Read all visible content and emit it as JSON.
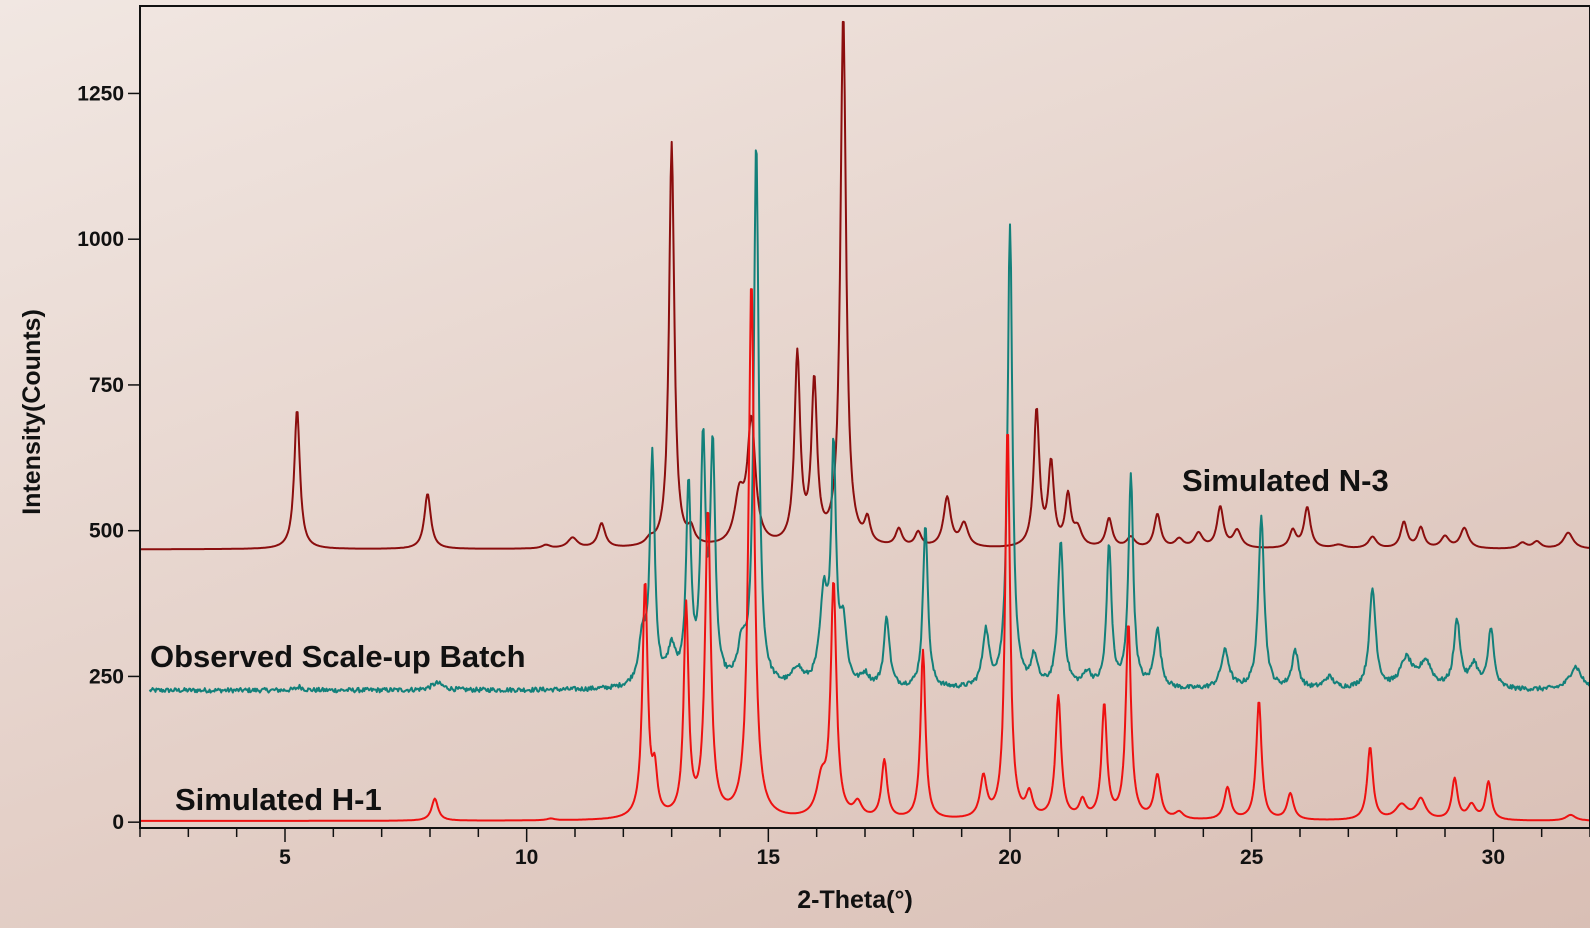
{
  "chart_data": {
    "type": "line",
    "title": "",
    "xlabel": "2-Theta(°)",
    "ylabel": "Intensity(Counts)",
    "xlim": [
      2,
      32
    ],
    "ylim": [
      -10,
      1400
    ],
    "x_ticks": [
      5,
      10,
      15,
      20,
      25,
      30
    ],
    "y_ticks": [
      0,
      250,
      500,
      750,
      1000,
      1250
    ],
    "grid": false,
    "legend": "none",
    "series": [
      {
        "name": "Simulated N-3",
        "color": "#8b0e0e",
        "baseline": 468,
        "noise": 0,
        "peaks": [
          [
            5.25,
            240,
            0.07
          ],
          [
            7.95,
            95,
            0.08
          ],
          [
            10.4,
            6,
            0.1
          ],
          [
            10.95,
            18,
            0.12
          ],
          [
            11.55,
            42,
            0.09
          ],
          [
            12.55,
            10,
            0.1
          ],
          [
            13.0,
            695,
            0.065
          ],
          [
            13.4,
            25,
            0.08
          ],
          [
            14.4,
            80,
            0.12
          ],
          [
            14.65,
            210,
            0.1
          ],
          [
            15.6,
            325,
            0.07
          ],
          [
            15.95,
            275,
            0.07
          ],
          [
            16.55,
            915,
            0.07
          ],
          [
            17.05,
            40,
            0.07
          ],
          [
            17.7,
            30,
            0.08
          ],
          [
            18.1,
            25,
            0.08
          ],
          [
            18.7,
            85,
            0.09
          ],
          [
            19.05,
            40,
            0.1
          ],
          [
            20.55,
            235,
            0.07
          ],
          [
            20.85,
            140,
            0.07
          ],
          [
            21.2,
            85,
            0.07
          ],
          [
            21.4,
            30,
            0.1
          ],
          [
            22.05,
            50,
            0.08
          ],
          [
            22.5,
            18,
            0.1
          ],
          [
            23.05,
            58,
            0.08
          ],
          [
            23.5,
            15,
            0.1
          ],
          [
            23.9,
            25,
            0.1
          ],
          [
            24.35,
            70,
            0.08
          ],
          [
            24.7,
            30,
            0.1
          ],
          [
            25.85,
            30,
            0.08
          ],
          [
            26.15,
            70,
            0.08
          ],
          [
            26.8,
            6,
            0.15
          ],
          [
            27.5,
            20,
            0.1
          ],
          [
            28.15,
            45,
            0.08
          ],
          [
            28.5,
            35,
            0.08
          ],
          [
            29.0,
            20,
            0.1
          ],
          [
            29.4,
            35,
            0.1
          ],
          [
            30.6,
            10,
            0.1
          ],
          [
            30.9,
            12,
            0.1
          ],
          [
            31.55,
            28,
            0.12
          ]
        ]
      },
      {
        "name": "Observed Scale-up Batch",
        "color": "#13807a",
        "baseline": 226,
        "noise": 4,
        "peaks": [
          [
            5.3,
            6,
            0.08
          ],
          [
            8.15,
            12,
            0.15
          ],
          [
            12.4,
            80,
            0.1
          ],
          [
            12.6,
            390,
            0.06
          ],
          [
            13.0,
            60,
            0.1
          ],
          [
            13.35,
            340,
            0.06
          ],
          [
            13.65,
            405,
            0.06
          ],
          [
            13.85,
            400,
            0.06
          ],
          [
            14.45,
            60,
            0.1
          ],
          [
            14.75,
            935,
            0.06
          ],
          [
            15.6,
            30,
            0.12
          ],
          [
            16.15,
            150,
            0.1
          ],
          [
            16.35,
            390,
            0.06
          ],
          [
            16.55,
            100,
            0.08
          ],
          [
            17.0,
            20,
            0.1
          ],
          [
            17.45,
            120,
            0.07
          ],
          [
            18.25,
            285,
            0.06
          ],
          [
            19.5,
            95,
            0.08
          ],
          [
            20.0,
            795,
            0.06
          ],
          [
            20.5,
            50,
            0.08
          ],
          [
            21.05,
            250,
            0.07
          ],
          [
            21.6,
            25,
            0.1
          ],
          [
            22.05,
            245,
            0.06
          ],
          [
            22.5,
            365,
            0.06
          ],
          [
            23.05,
            100,
            0.08
          ],
          [
            24.45,
            65,
            0.1
          ],
          [
            25.2,
            300,
            0.07
          ],
          [
            25.9,
            65,
            0.08
          ],
          [
            26.6,
            20,
            0.12
          ],
          [
            27.5,
            170,
            0.08
          ],
          [
            28.2,
            50,
            0.15
          ],
          [
            28.6,
            45,
            0.15
          ],
          [
            29.25,
            115,
            0.08
          ],
          [
            29.6,
            40,
            0.1
          ],
          [
            29.95,
            105,
            0.07
          ],
          [
            31.7,
            40,
            0.15
          ]
        ]
      },
      {
        "name": "Simulated H-1",
        "color": "#ee1111",
        "baseline": 2,
        "noise": 0,
        "peaks": [
          [
            8.1,
            38,
            0.08
          ],
          [
            10.5,
            3,
            0.1
          ],
          [
            12.45,
            405,
            0.065
          ],
          [
            12.65,
            70,
            0.06
          ],
          [
            13.3,
            360,
            0.06
          ],
          [
            13.75,
            525,
            0.07
          ],
          [
            14.65,
            925,
            0.07
          ],
          [
            16.1,
            60,
            0.12
          ],
          [
            16.35,
            400,
            0.07
          ],
          [
            16.85,
            25,
            0.1
          ],
          [
            17.4,
            100,
            0.07
          ],
          [
            18.2,
            290,
            0.06
          ],
          [
            19.45,
            70,
            0.08
          ],
          [
            19.95,
            675,
            0.06
          ],
          [
            20.4,
            40,
            0.08
          ],
          [
            21.0,
            210,
            0.07
          ],
          [
            21.5,
            30,
            0.08
          ],
          [
            21.95,
            195,
            0.065
          ],
          [
            22.45,
            335,
            0.065
          ],
          [
            23.05,
            75,
            0.08
          ],
          [
            23.5,
            12,
            0.1
          ],
          [
            24.5,
            55,
            0.08
          ],
          [
            25.15,
            205,
            0.065
          ],
          [
            25.8,
            45,
            0.08
          ],
          [
            27.45,
            125,
            0.07
          ],
          [
            28.1,
            25,
            0.15
          ],
          [
            28.5,
            35,
            0.12
          ],
          [
            29.2,
            70,
            0.07
          ],
          [
            29.55,
            25,
            0.1
          ],
          [
            29.9,
            65,
            0.07
          ],
          [
            31.6,
            10,
            0.12
          ]
        ]
      }
    ]
  }
}
